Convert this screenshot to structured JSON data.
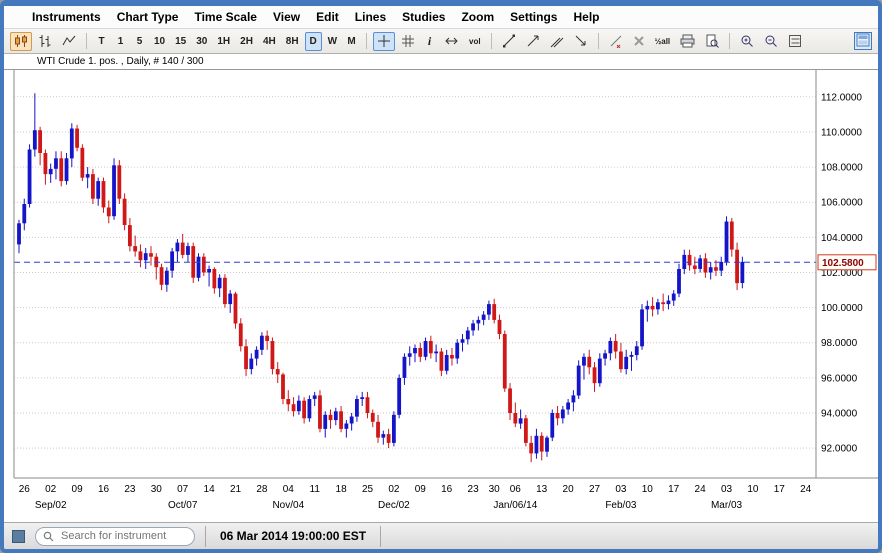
{
  "window": {
    "frame_color": "#4479bd"
  },
  "menu": {
    "items": [
      "Instruments",
      "Chart Type",
      "Time Scale",
      "View",
      "Edit",
      "Lines",
      "Studies",
      "Zoom",
      "Settings",
      "Help"
    ]
  },
  "toolbar": {
    "timeframes": [
      "T",
      "1",
      "5",
      "10",
      "15",
      "30",
      "1H",
      "2H",
      "4H",
      "8H",
      "D",
      "W",
      "M"
    ],
    "selected_timeframe": "D",
    "info_label": "i",
    "vol_label": "vol",
    "scale_label": "½all"
  },
  "chart": {
    "title": "WTI Crude 1. pos. , Daily, # 140 / 300"
  },
  "statusbar": {
    "search_placeholder": "Search for instrument",
    "timestamp": "06 Mar 2014 19:00:00 EST"
  },
  "chart_data": {
    "type": "candlestick",
    "title": "WTI Crude 1. pos. , Daily, # 140 / 300",
    "instrument": "WTI Crude 1. pos.",
    "timeframe": "Daily",
    "bar_counter": "# 140 / 300",
    "xlabel": "",
    "ylabel": "",
    "y_axis_side": "right",
    "grid": "horizontal-dotted",
    "ylim": [
      90.3,
      113.3
    ],
    "y_ticks": [
      112,
      110,
      108,
      106,
      104,
      102,
      100,
      98,
      96,
      94,
      92
    ],
    "current_price": 102.58,
    "current_price_label": "102.5800",
    "up_color": "#1414c8",
    "down_color": "#d01818",
    "x_ticks": [
      [
        1,
        "26"
      ],
      [
        6,
        "02"
      ],
      [
        11,
        "09"
      ],
      [
        16,
        "16"
      ],
      [
        21,
        "23"
      ],
      [
        26,
        "30"
      ],
      [
        31,
        "07"
      ],
      [
        36,
        "14"
      ],
      [
        41,
        "21"
      ],
      [
        46,
        "28"
      ],
      [
        51,
        "04"
      ],
      [
        56,
        "11"
      ],
      [
        61,
        "18"
      ],
      [
        66,
        "25"
      ],
      [
        71,
        "02"
      ],
      [
        76,
        "09"
      ],
      [
        81,
        "16"
      ],
      [
        86,
        "23"
      ],
      [
        90,
        "30"
      ],
      [
        94,
        "06"
      ],
      [
        99,
        "13"
      ],
      [
        104,
        "20"
      ],
      [
        109,
        "27"
      ],
      [
        114,
        "03"
      ],
      [
        119,
        "10"
      ],
      [
        124,
        "17"
      ],
      [
        129,
        "24"
      ],
      [
        134,
        "03"
      ],
      [
        139,
        "10"
      ],
      [
        144,
        "17"
      ],
      [
        149,
        "24"
      ]
    ],
    "month_labels": [
      [
        6,
        "Sep/02"
      ],
      [
        31,
        "Oct/07"
      ],
      [
        51,
        "Nov/04"
      ],
      [
        71,
        "Dec/02"
      ],
      [
        94,
        "Jan/06/14"
      ],
      [
        114,
        "Feb/03"
      ],
      [
        134,
        "Mar/03"
      ]
    ],
    "candles": [
      [
        103.6,
        105.0,
        103.1,
        104.8
      ],
      [
        104.8,
        106.2,
        104.4,
        105.9
      ],
      [
        105.9,
        109.3,
        105.7,
        109.0
      ],
      [
        109.0,
        112.2,
        108.6,
        110.1
      ],
      [
        110.1,
        110.3,
        108.1,
        108.8
      ],
      [
        108.8,
        109.0,
        107.0,
        107.6
      ],
      [
        107.6,
        108.2,
        107.1,
        107.9
      ],
      [
        107.9,
        108.9,
        107.3,
        108.5
      ],
      [
        108.5,
        108.9,
        106.9,
        107.2
      ],
      [
        107.2,
        108.8,
        107.0,
        108.5
      ],
      [
        108.5,
        110.5,
        108.0,
        110.2
      ],
      [
        110.2,
        110.4,
        108.9,
        109.1
      ],
      [
        109.1,
        109.3,
        107.2,
        107.4
      ],
      [
        107.4,
        108.0,
        106.8,
        107.6
      ],
      [
        107.6,
        107.9,
        105.9,
        106.2
      ],
      [
        106.2,
        107.4,
        105.8,
        107.2
      ],
      [
        107.2,
        107.4,
        105.4,
        105.7
      ],
      [
        105.7,
        106.1,
        104.8,
        105.2
      ],
      [
        105.2,
        108.5,
        105.0,
        108.1
      ],
      [
        108.1,
        108.4,
        105.9,
        106.2
      ],
      [
        106.2,
        106.5,
        104.4,
        104.7
      ],
      [
        104.7,
        105.1,
        103.2,
        103.5
      ],
      [
        103.5,
        104.1,
        102.9,
        103.2
      ],
      [
        103.2,
        103.6,
        102.3,
        102.7
      ],
      [
        102.7,
        103.4,
        102.2,
        103.1
      ],
      [
        103.1,
        103.5,
        102.4,
        102.9
      ],
      [
        102.9,
        103.1,
        101.6,
        102.3
      ],
      [
        102.3,
        102.5,
        101.0,
        101.3
      ],
      [
        101.3,
        102.3,
        100.9,
        102.1
      ],
      [
        102.1,
        103.4,
        101.7,
        103.2
      ],
      [
        103.2,
        103.9,
        102.6,
        103.7
      ],
      [
        103.7,
        104.2,
        102.8,
        103.0
      ],
      [
        103.0,
        103.7,
        102.6,
        103.5
      ],
      [
        103.5,
        103.7,
        101.4,
        101.7
      ],
      [
        101.7,
        103.1,
        101.5,
        102.9
      ],
      [
        102.9,
        103.1,
        101.8,
        102.0
      ],
      [
        102.0,
        102.4,
        101.2,
        102.2
      ],
      [
        102.2,
        102.3,
        100.8,
        101.1
      ],
      [
        101.1,
        101.9,
        100.6,
        101.7
      ],
      [
        101.7,
        101.9,
        100.0,
        100.2
      ],
      [
        100.2,
        101.0,
        99.7,
        100.8
      ],
      [
        100.8,
        100.9,
        98.8,
        99.1
      ],
      [
        99.1,
        99.4,
        97.5,
        97.8
      ],
      [
        97.8,
        98.2,
        96.1,
        96.5
      ],
      [
        96.5,
        97.4,
        96.2,
        97.1
      ],
      [
        97.1,
        97.8,
        96.7,
        97.6
      ],
      [
        97.6,
        98.6,
        97.3,
        98.4
      ],
      [
        98.4,
        98.7,
        97.6,
        98.1
      ],
      [
        98.1,
        98.3,
        96.2,
        96.5
      ],
      [
        96.5,
        96.9,
        95.7,
        96.2
      ],
      [
        96.2,
        96.3,
        94.5,
        94.8
      ],
      [
        94.8,
        95.3,
        94.1,
        94.5
      ],
      [
        94.5,
        94.9,
        93.8,
        94.1
      ],
      [
        94.1,
        95.0,
        93.9,
        94.7
      ],
      [
        94.7,
        94.9,
        93.4,
        93.7
      ],
      [
        93.7,
        95.0,
        93.5,
        94.8
      ],
      [
        94.8,
        95.2,
        94.4,
        95.0
      ],
      [
        95.0,
        95.3,
        92.9,
        93.1
      ],
      [
        93.1,
        94.1,
        92.6,
        93.9
      ],
      [
        93.9,
        94.2,
        93.1,
        93.6
      ],
      [
        93.6,
        94.3,
        93.3,
        94.1
      ],
      [
        94.1,
        94.4,
        92.9,
        93.1
      ],
      [
        93.1,
        93.6,
        92.6,
        93.4
      ],
      [
        93.4,
        94.0,
        93.0,
        93.8
      ],
      [
        93.8,
        95.0,
        93.5,
        94.8
      ],
      [
        94.8,
        95.2,
        94.4,
        94.9
      ],
      [
        94.9,
        95.2,
        93.7,
        94.0
      ],
      [
        94.0,
        94.2,
        93.2,
        93.5
      ],
      [
        93.5,
        93.9,
        92.3,
        92.6
      ],
      [
        92.6,
        93.0,
        92.2,
        92.8
      ],
      [
        92.8,
        93.1,
        92.0,
        92.3
      ],
      [
        92.3,
        94.1,
        92.1,
        93.9
      ],
      [
        93.9,
        96.2,
        93.7,
        96.0
      ],
      [
        96.0,
        97.4,
        95.6,
        97.2
      ],
      [
        97.2,
        97.8,
        96.7,
        97.4
      ],
      [
        97.4,
        97.9,
        96.9,
        97.7
      ],
      [
        97.7,
        98.0,
        96.9,
        97.2
      ],
      [
        97.2,
        98.3,
        97.0,
        98.1
      ],
      [
        98.1,
        98.4,
        97.1,
        97.4
      ],
      [
        97.4,
        97.9,
        96.9,
        97.5
      ],
      [
        97.5,
        97.7,
        96.1,
        96.4
      ],
      [
        96.4,
        97.6,
        96.2,
        97.3
      ],
      [
        97.3,
        97.7,
        96.7,
        97.1
      ],
      [
        97.1,
        98.2,
        96.8,
        98.0
      ],
      [
        98.0,
        98.5,
        97.5,
        98.2
      ],
      [
        98.2,
        98.9,
        97.9,
        98.7
      ],
      [
        98.7,
        99.3,
        98.4,
        99.1
      ],
      [
        99.1,
        99.5,
        98.7,
        99.3
      ],
      [
        99.3,
        99.8,
        99.0,
        99.6
      ],
      [
        99.6,
        100.4,
        99.3,
        100.2
      ],
      [
        100.2,
        100.5,
        99.1,
        99.3
      ],
      [
        99.3,
        99.6,
        98.2,
        98.5
      ],
      [
        98.5,
        98.7,
        95.2,
        95.4
      ],
      [
        95.4,
        95.7,
        93.6,
        94.0
      ],
      [
        94.0,
        94.6,
        93.2,
        93.4
      ],
      [
        93.4,
        94.2,
        93.1,
        93.7
      ],
      [
        93.7,
        93.9,
        92.1,
        92.3
      ],
      [
        92.3,
        92.7,
        91.2,
        91.7
      ],
      [
        91.7,
        93.1,
        91.4,
        92.7
      ],
      [
        92.7,
        92.9,
        91.3,
        91.8
      ],
      [
        91.8,
        92.7,
        91.5,
        92.6
      ],
      [
        92.6,
        94.2,
        92.4,
        94.0
      ],
      [
        94.0,
        94.4,
        93.3,
        93.7
      ],
      [
        93.7,
        94.4,
        93.4,
        94.2
      ],
      [
        94.2,
        94.8,
        93.9,
        94.6
      ],
      [
        94.6,
        95.3,
        94.1,
        95.0
      ],
      [
        95.0,
        97.0,
        94.8,
        96.7
      ],
      [
        96.7,
        97.4,
        95.9,
        97.2
      ],
      [
        97.2,
        97.6,
        96.2,
        96.6
      ],
      [
        96.6,
        96.9,
        95.2,
        95.7
      ],
      [
        95.7,
        97.4,
        95.5,
        97.1
      ],
      [
        97.1,
        97.6,
        96.7,
        97.4
      ],
      [
        97.4,
        98.3,
        97.0,
        98.1
      ],
      [
        98.1,
        98.5,
        97.1,
        97.5
      ],
      [
        97.5,
        98.0,
        96.3,
        96.5
      ],
      [
        96.5,
        97.6,
        96.2,
        97.2
      ],
      [
        97.2,
        97.5,
        96.4,
        97.3
      ],
      [
        97.3,
        98.1,
        97.0,
        97.8
      ],
      [
        97.8,
        100.2,
        97.6,
        99.9
      ],
      [
        99.9,
        100.4,
        99.2,
        100.1
      ],
      [
        100.1,
        100.6,
        99.5,
        99.9
      ],
      [
        99.9,
        100.5,
        99.6,
        100.3
      ],
      [
        100.3,
        100.8,
        99.8,
        100.2
      ],
      [
        100.2,
        100.7,
        99.9,
        100.4
      ],
      [
        100.4,
        101.0,
        100.1,
        100.8
      ],
      [
        100.8,
        102.5,
        100.6,
        102.2
      ],
      [
        102.2,
        103.3,
        101.9,
        103.0
      ],
      [
        103.0,
        103.3,
        102.1,
        102.4
      ],
      [
        102.4,
        102.9,
        101.9,
        102.2
      ],
      [
        102.2,
        103.0,
        102.0,
        102.8
      ],
      [
        102.8,
        103.1,
        101.7,
        102.0
      ],
      [
        102.0,
        102.6,
        101.6,
        102.3
      ],
      [
        102.3,
        102.7,
        101.8,
        102.1
      ],
      [
        102.1,
        102.9,
        101.8,
        102.6
      ],
      [
        102.6,
        105.2,
        102.4,
        104.9
      ],
      [
        104.9,
        105.1,
        102.9,
        103.3
      ],
      [
        103.3,
        103.7,
        101.0,
        101.4
      ],
      [
        101.4,
        102.9,
        101.1,
        102.6
      ]
    ]
  }
}
